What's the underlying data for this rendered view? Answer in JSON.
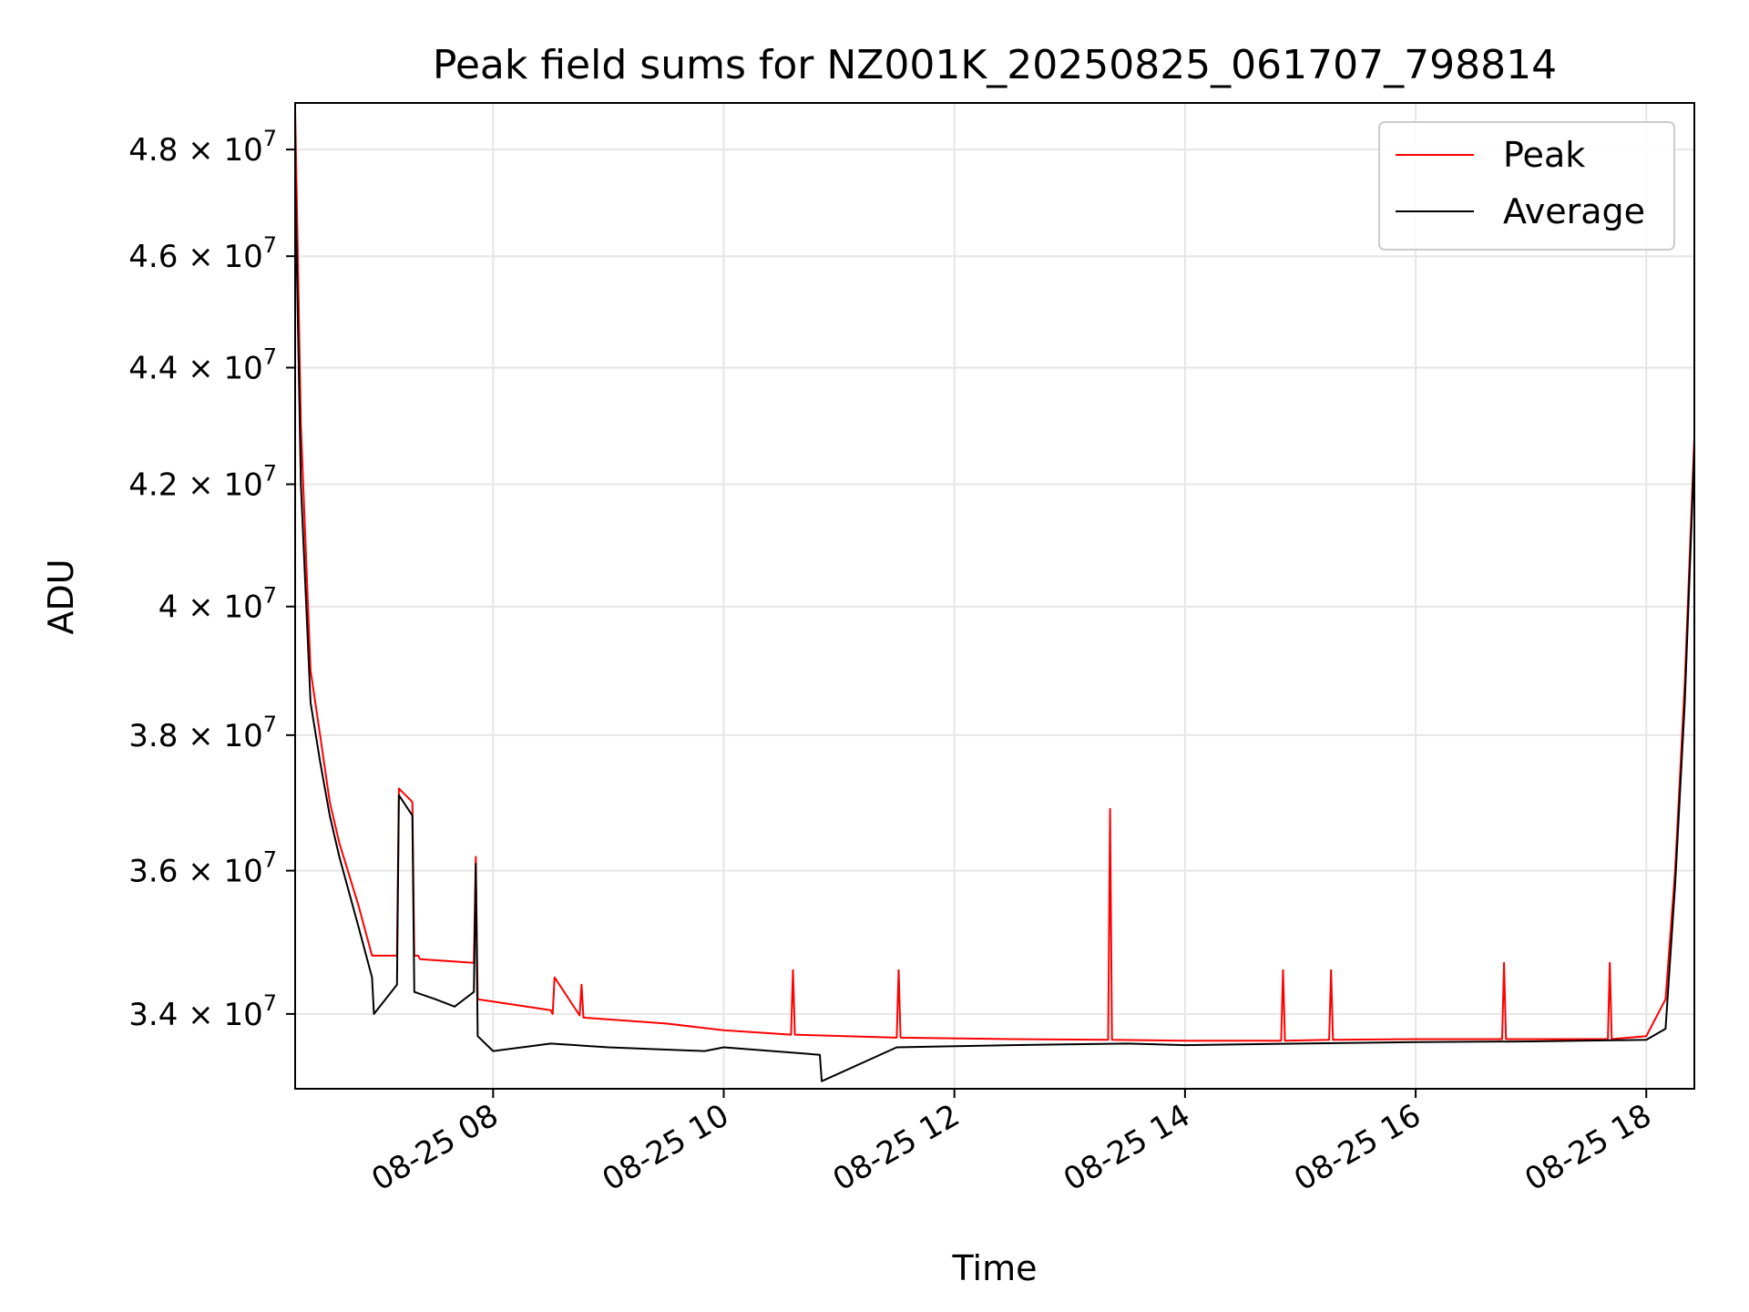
{
  "chart_data": {
    "type": "line",
    "title": "Peak field sums for NZ001K_20250825_061707_798814",
    "xlabel": "Time",
    "ylabel": "ADU",
    "yscale": "log",
    "xlim": [
      "2025-08-25 06:17",
      "2025-08-25 18:25"
    ],
    "ylim": [
      33000000,
      48900000
    ],
    "x_ticks": [
      "2025-08-25 08:00",
      "2025-08-25 10:00",
      "2025-08-25 12:00",
      "2025-08-25 14:00",
      "2025-08-25 16:00",
      "2025-08-25 18:00"
    ],
    "x_tick_labels": [
      "08-25 08",
      "08-25 10",
      "08-25 12",
      "08-25 14",
      "08-25 16",
      "08-25 18"
    ],
    "y_ticks": [
      {
        "value": 48000000,
        "mantissa": "4.8",
        "base": "10",
        "exp": "7"
      },
      {
        "value": 46000000,
        "mantissa": "4.6",
        "base": "10",
        "exp": "7"
      },
      {
        "value": 44000000,
        "mantissa": "4.4",
        "base": "10",
        "exp": "7"
      },
      {
        "value": 42000000,
        "mantissa": "4.2",
        "base": "10",
        "exp": "7"
      },
      {
        "value": 40000000,
        "mantissa": "4",
        "base": "10",
        "exp": "7"
      },
      {
        "value": 38000000,
        "mantissa": "3.8",
        "base": "10",
        "exp": "7"
      },
      {
        "value": 36000000,
        "mantissa": "3.6",
        "base": "10",
        "exp": "7"
      },
      {
        "value": 34000000,
        "mantissa": "3.4",
        "base": "10",
        "exp": "7"
      }
    ],
    "grid": true,
    "legend_position": "top-right",
    "series": [
      {
        "name": "Peak",
        "color": "#ff0000",
        "x": [
          "2025-08-25 06:17",
          "2025-08-25 06:20",
          "2025-08-25 06:25",
          "2025-08-25 06:30",
          "2025-08-25 06:35",
          "2025-08-25 06:40",
          "2025-08-25 06:50",
          "2025-08-25 06:57",
          "2025-08-25 06:58",
          "2025-08-25 07:10",
          "2025-08-25 07:11",
          "2025-08-25 07:18",
          "2025-08-25 07:19",
          "2025-08-25 07:21",
          "2025-08-25 07:22",
          "2025-08-25 07:50",
          "2025-08-25 07:51",
          "2025-08-25 07:52",
          "2025-08-25 08:30",
          "2025-08-25 08:31",
          "2025-08-25 08:32",
          "2025-08-25 08:45",
          "2025-08-25 08:46",
          "2025-08-25 08:47",
          "2025-08-25 09:30",
          "2025-08-25 10:00",
          "2025-08-25 10:35",
          "2025-08-25 10:36",
          "2025-08-25 10:37",
          "2025-08-25 11:30",
          "2025-08-25 11:31",
          "2025-08-25 11:32",
          "2025-08-25 12:30",
          "2025-08-25 13:20",
          "2025-08-25 13:21",
          "2025-08-25 13:22",
          "2025-08-25 14:00",
          "2025-08-25 14:50",
          "2025-08-25 14:51",
          "2025-08-25 14:52",
          "2025-08-25 15:15",
          "2025-08-25 15:16",
          "2025-08-25 15:17",
          "2025-08-25 16:00",
          "2025-08-25 16:30",
          "2025-08-25 16:45",
          "2025-08-25 16:46",
          "2025-08-25 16:47",
          "2025-08-25 17:40",
          "2025-08-25 17:41",
          "2025-08-25 17:42",
          "2025-08-25 18:00",
          "2025-08-25 18:10",
          "2025-08-25 18:15",
          "2025-08-25 18:20",
          "2025-08-25 18:25"
        ],
        "values": [
          48800000,
          43000000,
          39000000,
          38000000,
          37000000,
          36400000,
          35500000,
          34800000,
          34800000,
          34800000,
          37200000,
          37000000,
          34800000,
          34800000,
          34750000,
          34700000,
          36200000,
          34200000,
          34050000,
          34000000,
          34500000,
          33980000,
          34400000,
          33950000,
          33870000,
          33780000,
          33720000,
          34600000,
          33720000,
          33680000,
          34600000,
          33680000,
          33660000,
          33650000,
          36900000,
          33650000,
          33640000,
          33640000,
          34600000,
          33640000,
          33650000,
          34600000,
          33650000,
          33660000,
          33660000,
          33660000,
          34700000,
          33660000,
          33660000,
          34700000,
          33660000,
          33700000,
          34200000,
          36000000,
          38800000,
          42800000
        ]
      },
      {
        "name": "Average",
        "color": "#000000",
        "x": [
          "2025-08-25 06:17",
          "2025-08-25 06:20",
          "2025-08-25 06:25",
          "2025-08-25 06:30",
          "2025-08-25 06:35",
          "2025-08-25 06:40",
          "2025-08-25 06:50",
          "2025-08-25 06:57",
          "2025-08-25 06:58",
          "2025-08-25 07:10",
          "2025-08-25 07:11",
          "2025-08-25 07:18",
          "2025-08-25 07:19",
          "2025-08-25 07:30",
          "2025-08-25 07:40",
          "2025-08-25 07:50",
          "2025-08-25 07:51",
          "2025-08-25 07:52",
          "2025-08-25 08:00",
          "2025-08-25 08:30",
          "2025-08-25 09:00",
          "2025-08-25 09:50",
          "2025-08-25 10:00",
          "2025-08-25 10:50",
          "2025-08-25 10:51",
          "2025-08-25 11:30",
          "2025-08-25 12:30",
          "2025-08-25 13:30",
          "2025-08-25 14:00",
          "2025-08-25 15:00",
          "2025-08-25 16:00",
          "2025-08-25 17:00",
          "2025-08-25 18:00",
          "2025-08-25 18:10",
          "2025-08-25 18:15",
          "2025-08-25 18:20",
          "2025-08-25 18:25"
        ],
        "values": [
          47600000,
          42000000,
          38500000,
          37600000,
          36800000,
          36200000,
          35200000,
          34500000,
          34000000,
          34400000,
          37100000,
          36800000,
          34300000,
          34200000,
          34100000,
          34300000,
          36100000,
          33700000,
          33500000,
          33600000,
          33550000,
          33500000,
          33550000,
          33450000,
          33100000,
          33550000,
          33580000,
          33600000,
          33580000,
          33600000,
          33620000,
          33630000,
          33650000,
          33800000,
          35800000,
          38500000,
          42600000
        ]
      }
    ]
  }
}
